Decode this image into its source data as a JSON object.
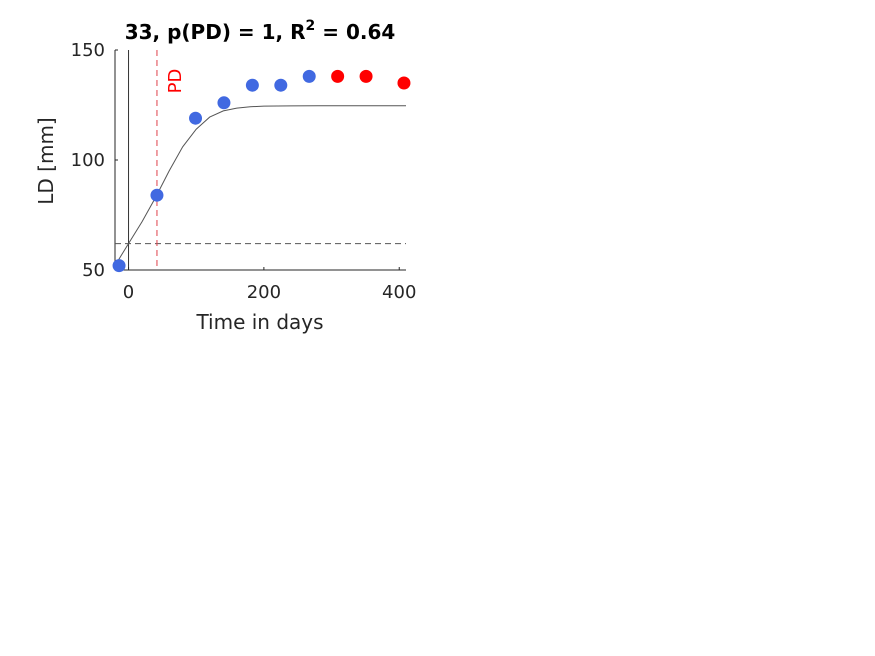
{
  "chart_data": {
    "type": "scatter",
    "title": {
      "main": "33, p(PD) = 1, R",
      "superscript": "2",
      "tail": " = 0.64"
    },
    "xlabel": "Time in days",
    "ylabel": "LD [mm]",
    "xlim": [
      -20,
      410
    ],
    "ylim": [
      50,
      150
    ],
    "xticks": [
      0,
      200,
      400
    ],
    "yticks": [
      50,
      100,
      150
    ],
    "grid": false,
    "baseline_y": 62,
    "pd_x": 42,
    "pd_label": "PD",
    "colors": {
      "blue_points": "#4169e1",
      "red_points": "#ff0000",
      "pd_line": "#e0404a",
      "fit_curve": "#555555",
      "baseline": "#555555",
      "axes": "#262626"
    },
    "series": [
      {
        "color_key": "blue_points",
        "points": [
          {
            "x": -14,
            "y": 52
          },
          {
            "x": 42,
            "y": 84
          },
          {
            "x": 99,
            "y": 119
          },
          {
            "x": 141,
            "y": 126
          },
          {
            "x": 183,
            "y": 134
          },
          {
            "x": 225,
            "y": 134
          },
          {
            "x": 267,
            "y": 138
          }
        ]
      },
      {
        "color_key": "red_points",
        "points": [
          {
            "x": 309,
            "y": 138
          },
          {
            "x": 351,
            "y": 138
          },
          {
            "x": 407,
            "y": 135
          }
        ]
      }
    ],
    "fit_curve": {
      "x": [
        -20,
        0,
        20,
        40,
        60,
        80,
        100,
        120,
        140,
        160,
        180,
        200,
        240,
        280,
        320,
        360,
        410
      ],
      "y": [
        52,
        62,
        72,
        83,
        95,
        106,
        114,
        119.5,
        122.3,
        123.6,
        124.2,
        124.5,
        124.6,
        124.7,
        124.7,
        124.7,
        124.7
      ]
    }
  }
}
